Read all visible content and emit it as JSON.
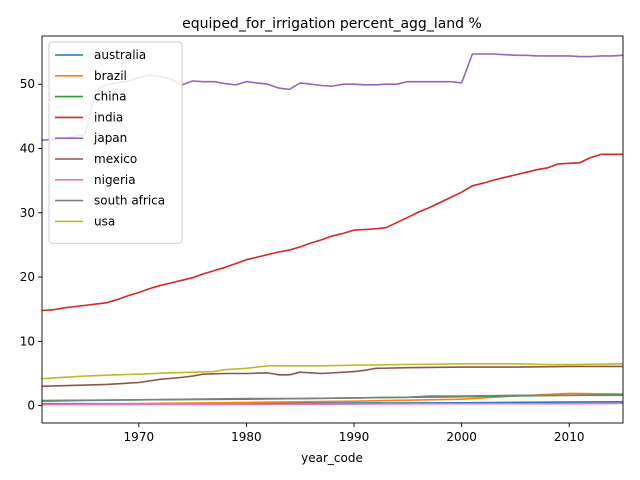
{
  "chart_data": {
    "type": "line",
    "title": "equiped_for_irrigation percent_agg_land %",
    "xlabel": "year_code",
    "ylabel": "",
    "xlim": [
      1961,
      2015
    ],
    "ylim": [
      -2.7,
      57.5
    ],
    "xticks": [
      1970,
      1980,
      1990,
      2000,
      2010
    ],
    "yticks": [
      0,
      10,
      20,
      30,
      40,
      50
    ],
    "grid": false,
    "legend_position": "top-left",
    "series": [
      {
        "name": "australia",
        "color": "#1f77b4",
        "points": [
          [
            1961,
            0.3
          ],
          [
            1970,
            0.3
          ],
          [
            1980,
            0.35
          ],
          [
            1990,
            0.4
          ],
          [
            2000,
            0.45
          ],
          [
            2010,
            0.55
          ],
          [
            2015,
            0.6
          ]
        ]
      },
      {
        "name": "brazil",
        "color": "#ff7f0e",
        "points": [
          [
            1961,
            0.2
          ],
          [
            1970,
            0.3
          ],
          [
            1980,
            0.5
          ],
          [
            1990,
            0.7
          ],
          [
            2000,
            1.0
          ],
          [
            2005,
            1.5
          ],
          [
            2010,
            1.9
          ],
          [
            2015,
            1.8
          ]
        ]
      },
      {
        "name": "china",
        "color": "#2ca02c",
        "points": [
          [
            1961,
            0.8
          ],
          [
            1970,
            0.9
          ],
          [
            1980,
            1.0
          ],
          [
            1990,
            1.2
          ],
          [
            2000,
            1.4
          ],
          [
            2005,
            1.5
          ],
          [
            2010,
            1.6
          ],
          [
            2015,
            1.7
          ]
        ]
      },
      {
        "name": "india",
        "color": "#d62728",
        "points": [
          [
            1961,
            14.8
          ],
          [
            1962,
            14.9
          ],
          [
            1963,
            15.2
          ],
          [
            1964,
            15.4
          ],
          [
            1965,
            15.6
          ],
          [
            1966,
            15.8
          ],
          [
            1967,
            16.0
          ],
          [
            1968,
            16.5
          ],
          [
            1969,
            17.1
          ],
          [
            1970,
            17.6
          ],
          [
            1971,
            18.2
          ],
          [
            1972,
            18.7
          ],
          [
            1973,
            19.1
          ],
          [
            1974,
            19.5
          ],
          [
            1975,
            19.9
          ],
          [
            1976,
            20.5
          ],
          [
            1977,
            21.0
          ],
          [
            1978,
            21.5
          ],
          [
            1979,
            22.1
          ],
          [
            1980,
            22.7
          ],
          [
            1981,
            23.1
          ],
          [
            1982,
            23.5
          ],
          [
            1983,
            23.9
          ],
          [
            1984,
            24.2
          ],
          [
            1985,
            24.7
          ],
          [
            1986,
            25.3
          ],
          [
            1987,
            25.8
          ],
          [
            1988,
            26.4
          ],
          [
            1989,
            26.8
          ],
          [
            1990,
            27.3
          ],
          [
            1991,
            27.4
          ],
          [
            1992,
            27.5
          ],
          [
            1993,
            27.7
          ],
          [
            1994,
            28.5
          ],
          [
            1995,
            29.3
          ],
          [
            1996,
            30.1
          ],
          [
            1997,
            30.8
          ],
          [
            1998,
            31.6
          ],
          [
            1999,
            32.4
          ],
          [
            2000,
            33.2
          ],
          [
            2001,
            34.2
          ],
          [
            2002,
            34.6
          ],
          [
            2003,
            35.1
          ],
          [
            2004,
            35.5
          ],
          [
            2005,
            35.9
          ],
          [
            2006,
            36.3
          ],
          [
            2007,
            36.7
          ],
          [
            2008,
            37.0
          ],
          [
            2009,
            37.6
          ],
          [
            2010,
            37.7
          ],
          [
            2011,
            37.8
          ],
          [
            2012,
            38.6
          ],
          [
            2013,
            39.1
          ],
          [
            2014,
            39.1
          ],
          [
            2015,
            39.1
          ]
        ]
      },
      {
        "name": "japan",
        "color": "#9467bd",
        "points": [
          [
            1961,
            41.3
          ],
          [
            1962,
            41.4
          ],
          [
            1963,
            41.6
          ],
          [
            1964,
            41.9
          ],
          [
            1965,
            42.2
          ],
          [
            1966,
            49.0
          ],
          [
            1967,
            50.0
          ],
          [
            1968,
            50.2
          ],
          [
            1969,
            50.5
          ],
          [
            1970,
            51.0
          ],
          [
            1971,
            51.4
          ],
          [
            1972,
            51.2
          ],
          [
            1973,
            50.8
          ],
          [
            1974,
            49.9
          ],
          [
            1975,
            50.5
          ],
          [
            1976,
            50.4
          ],
          [
            1977,
            50.4
          ],
          [
            1978,
            50.1
          ],
          [
            1979,
            49.9
          ],
          [
            1980,
            50.4
          ],
          [
            1981,
            50.2
          ],
          [
            1982,
            50.0
          ],
          [
            1983,
            49.4
          ],
          [
            1984,
            49.2
          ],
          [
            1985,
            50.2
          ],
          [
            1986,
            50.0
          ],
          [
            1987,
            49.8
          ],
          [
            1988,
            49.7
          ],
          [
            1989,
            50.0
          ],
          [
            1990,
            50.0
          ],
          [
            1991,
            49.9
          ],
          [
            1992,
            49.9
          ],
          [
            1993,
            50.0
          ],
          [
            1994,
            50.0
          ],
          [
            1995,
            50.4
          ],
          [
            1996,
            50.4
          ],
          [
            1997,
            50.4
          ],
          [
            1998,
            50.4
          ],
          [
            1999,
            50.4
          ],
          [
            2000,
            50.2
          ],
          [
            2001,
            54.7
          ],
          [
            2002,
            54.7
          ],
          [
            2003,
            54.7
          ],
          [
            2004,
            54.6
          ],
          [
            2005,
            54.5
          ],
          [
            2006,
            54.5
          ],
          [
            2007,
            54.4
          ],
          [
            2008,
            54.4
          ],
          [
            2009,
            54.4
          ],
          [
            2010,
            54.4
          ],
          [
            2011,
            54.3
          ],
          [
            2012,
            54.3
          ],
          [
            2013,
            54.4
          ],
          [
            2014,
            54.4
          ],
          [
            2015,
            54.5
          ]
        ]
      },
      {
        "name": "mexico",
        "color": "#8c564b",
        "points": [
          [
            1961,
            3.0
          ],
          [
            1963,
            3.1
          ],
          [
            1965,
            3.2
          ],
          [
            1967,
            3.3
          ],
          [
            1970,
            3.6
          ],
          [
            1972,
            4.1
          ],
          [
            1974,
            4.4
          ],
          [
            1975,
            4.6
          ],
          [
            1976,
            4.9
          ],
          [
            1978,
            5.0
          ],
          [
            1980,
            5.0
          ],
          [
            1982,
            5.1
          ],
          [
            1983,
            4.8
          ],
          [
            1984,
            4.8
          ],
          [
            1985,
            5.2
          ],
          [
            1987,
            5.0
          ],
          [
            1990,
            5.3
          ],
          [
            1991,
            5.5
          ],
          [
            1992,
            5.8
          ],
          [
            1995,
            5.9
          ],
          [
            2000,
            6.0
          ],
          [
            2005,
            6.0
          ],
          [
            2010,
            6.1
          ],
          [
            2015,
            6.1
          ]
        ]
      },
      {
        "name": "nigeria",
        "color": "#e377c2",
        "points": [
          [
            1961,
            0.15
          ],
          [
            1970,
            0.18
          ],
          [
            1980,
            0.2
          ],
          [
            1990,
            0.25
          ],
          [
            2000,
            0.3
          ],
          [
            2010,
            0.3
          ],
          [
            2015,
            0.35
          ]
        ]
      },
      {
        "name": "south africa",
        "color": "#7f7f7f",
        "points": [
          [
            1961,
            0.7
          ],
          [
            1965,
            0.8
          ],
          [
            1970,
            0.9
          ],
          [
            1975,
            1.0
          ],
          [
            1980,
            1.1
          ],
          [
            1985,
            1.1
          ],
          [
            1990,
            1.2
          ],
          [
            1995,
            1.3
          ],
          [
            1997,
            1.5
          ],
          [
            2000,
            1.5
          ],
          [
            2005,
            1.6
          ],
          [
            2010,
            1.6
          ],
          [
            2015,
            1.6
          ]
        ]
      },
      {
        "name": "usa",
        "color": "#bcbd22",
        "points": [
          [
            1961,
            4.2
          ],
          [
            1963,
            4.4
          ],
          [
            1965,
            4.6
          ],
          [
            1968,
            4.8
          ],
          [
            1970,
            4.9
          ],
          [
            1973,
            5.1
          ],
          [
            1975,
            5.2
          ],
          [
            1977,
            5.3
          ],
          [
            1978,
            5.6
          ],
          [
            1980,
            5.8
          ],
          [
            1982,
            6.2
          ],
          [
            1985,
            6.2
          ],
          [
            1987,
            6.2
          ],
          [
            1990,
            6.3
          ],
          [
            1995,
            6.4
          ],
          [
            2000,
            6.5
          ],
          [
            2005,
            6.5
          ],
          [
            2008,
            6.4
          ],
          [
            2010,
            6.4
          ],
          [
            2015,
            6.5
          ]
        ]
      }
    ]
  }
}
